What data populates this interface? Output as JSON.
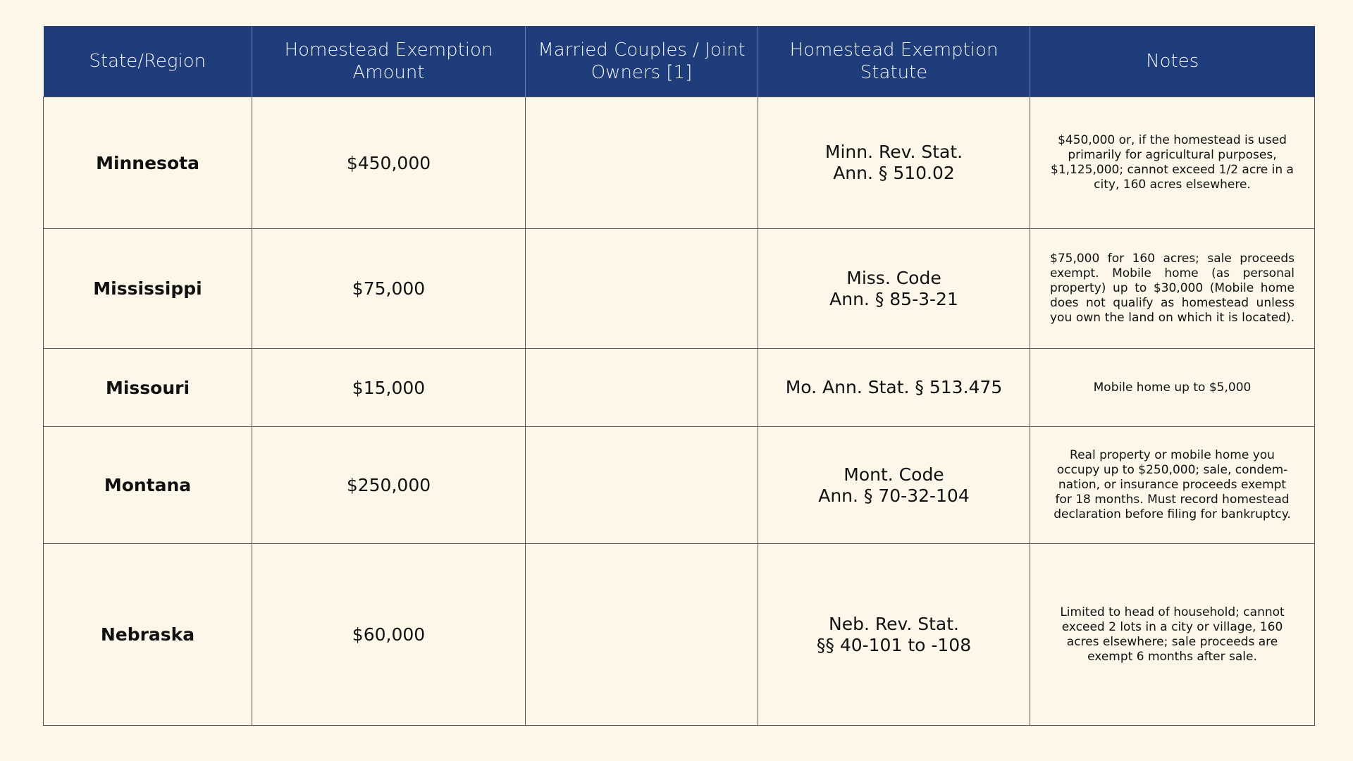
{
  "table": {
    "headers": [
      "State/Region",
      "Homestead Exemption Amount",
      "Married Couples / Joint Owners [1]",
      "Homestead Exemption Statute",
      "Notes"
    ],
    "rows": [
      {
        "state": "Minnesota",
        "amount": "$450,000",
        "joint": "",
        "statute_1": "Minn. Rev. Stat.",
        "statute_2": "Ann. § 510.02",
        "notes": "$450,000 or, if the homestead is used primarily for agricultural purposes, $1,125,000; cannot exceed 1/2 acre in a city, 160 acres elsewhere."
      },
      {
        "state": "Mississippi",
        "amount": "$75,000",
        "joint": "",
        "statute_1": "Miss. Code",
        "statute_2": "Ann. § 85-3-21",
        "notes": "$75,000 for 160 acres; sale proceeds exempt. Mobile home (as personal property) up to $30,000 (Mobile home does not qualify as homestead unless you own the land on which it is located)."
      },
      {
        "state": "Missouri",
        "amount": "$15,000",
        "joint": "",
        "statute_1": "Mo. Ann. Stat. § 513.475",
        "statute_2": "",
        "notes": "Mobile home up to $5,000"
      },
      {
        "state": "Montana",
        "amount": "$250,000",
        "joint": "",
        "statute_1": "Mont. Code",
        "statute_2": "Ann. § 70-32-104",
        "notes": "Real property or mobile home you occupy up to $250,000; sale, condem-nation, or insurance proceeds exempt for 18 months. Must record homestead declaration before filing for bankruptcy."
      },
      {
        "state": "Nebraska",
        "amount": "$60,000",
        "joint": "",
        "statute_1": "Neb. Rev. Stat.",
        "statute_2": "§§ 40-101 to -108",
        "notes": "Limited to head of household; cannot exceed 2 lots in a city or village, 160 acres elsewhere; sale proceeds are exempt 6 months after sale."
      }
    ]
  },
  "colors": {
    "header_bg": "#1f3d7a",
    "header_text": "#f2f2f2",
    "page_bg": "#fdf7ea"
  }
}
